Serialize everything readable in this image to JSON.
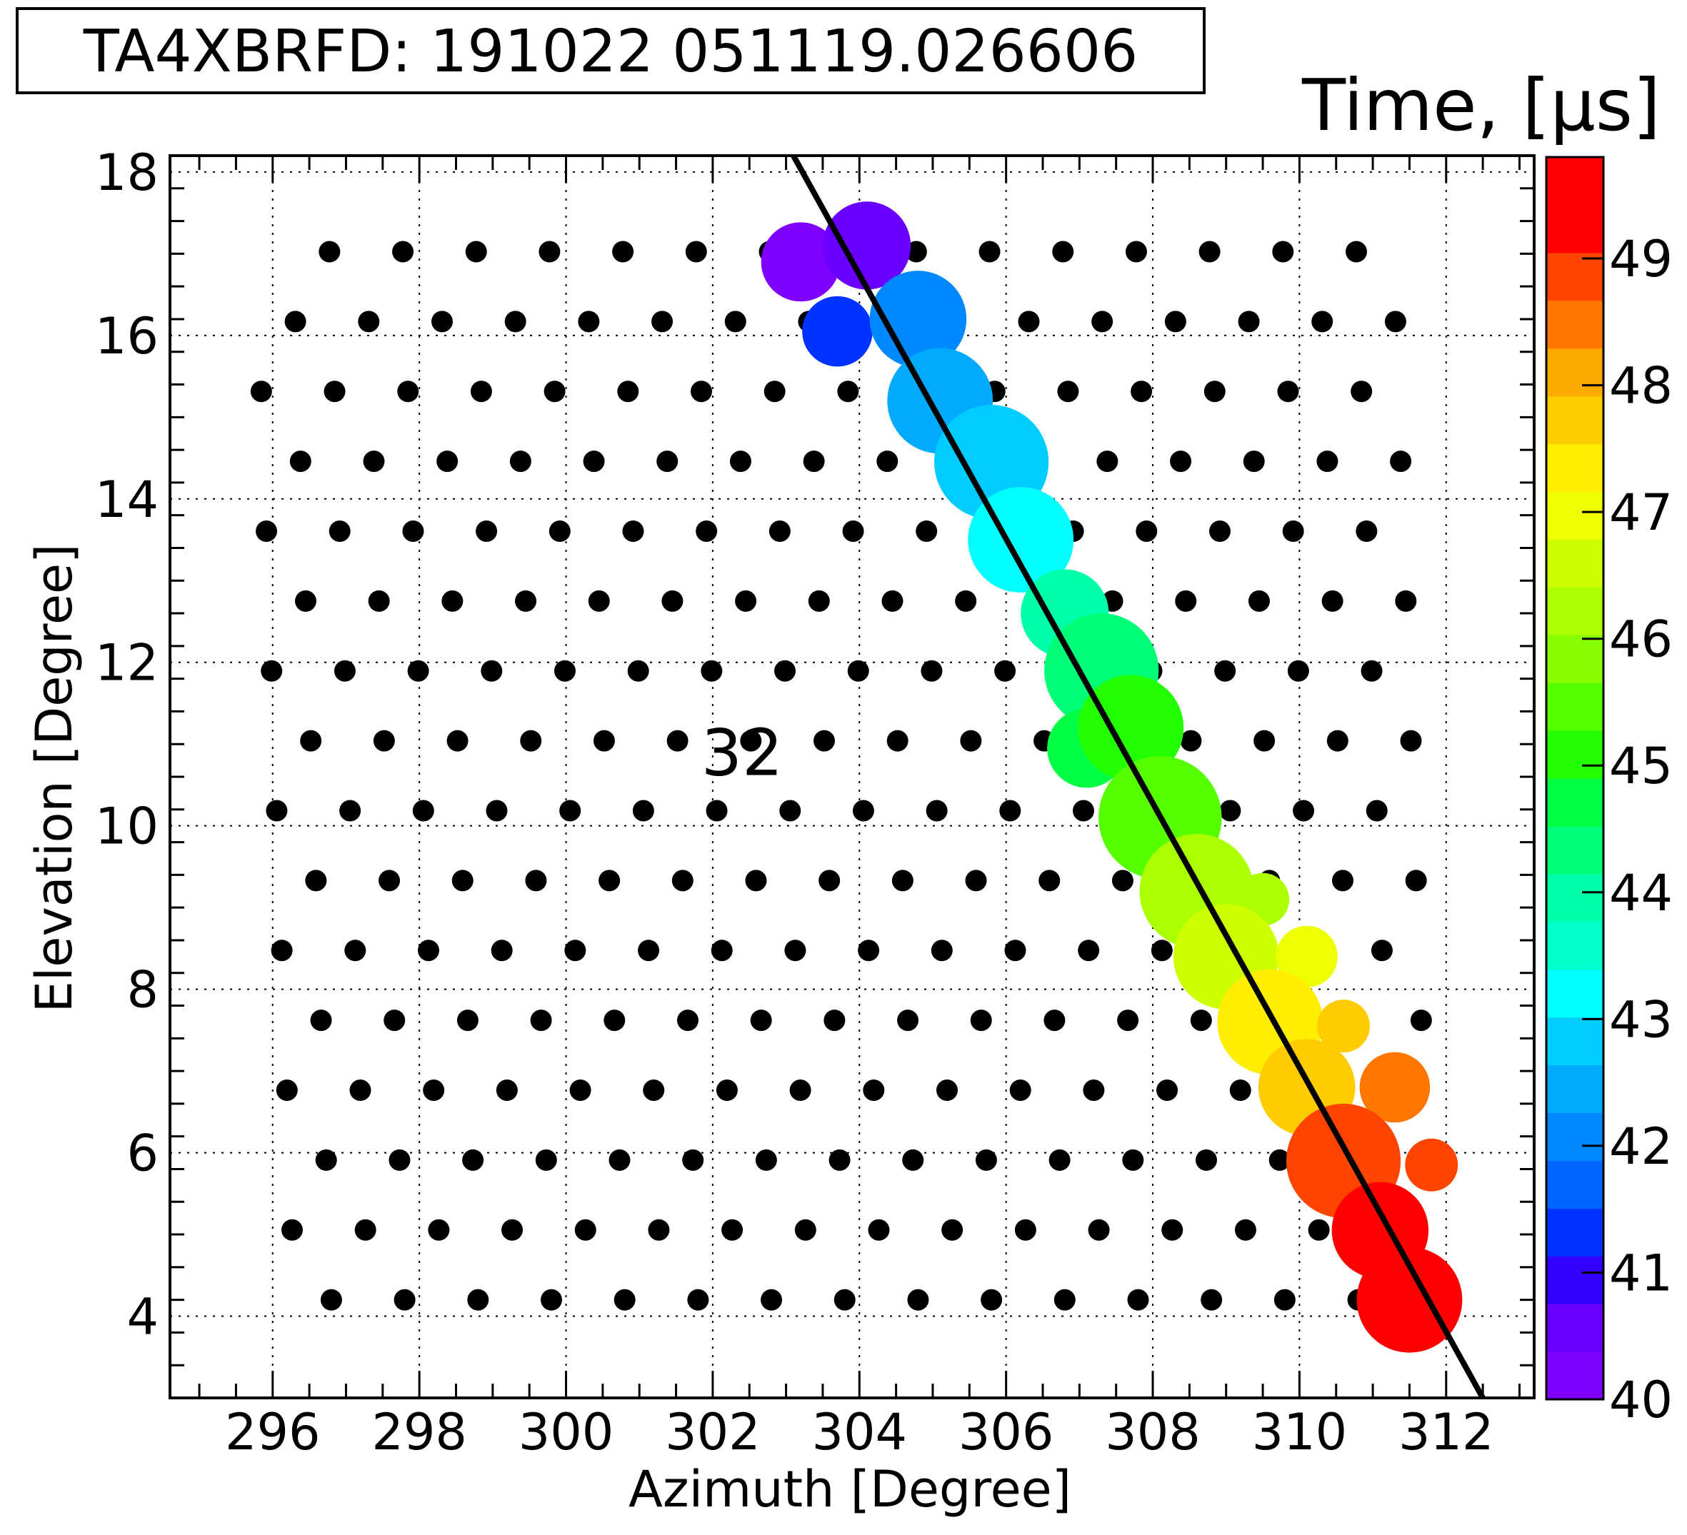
{
  "header": {
    "event_label": "TA4XBRFD: 191022 051119.026606"
  },
  "colorbar": {
    "title": "Time,  [μs]",
    "min": 40,
    "max": 49.8,
    "tick_labels": [
      "40",
      "41",
      "42",
      "43",
      "44",
      "45",
      "46",
      "47",
      "48",
      "49"
    ],
    "tick_values": [
      40,
      41,
      42,
      43,
      44,
      45,
      46,
      47,
      48,
      49
    ],
    "bands": [
      "#7f00ff",
      "#6a00ff",
      "#3300ff",
      "#0033ff",
      "#0066ff",
      "#0088ff",
      "#00aaff",
      "#00ccff",
      "#00ffff",
      "#00ffcc",
      "#00ffaa",
      "#00ff77",
      "#00ff44",
      "#22ff00",
      "#55ff00",
      "#88ff00",
      "#aaff00",
      "#ccff00",
      "#eeff00",
      "#ffee00",
      "#ffcc00",
      "#ffaa00",
      "#ff7700",
      "#ff4400",
      "#ff0000",
      "#ff0000"
    ]
  },
  "annotation": {
    "text": "32",
    "x": 302.4,
    "y": 10.9
  },
  "chart_data": {
    "type": "scatter",
    "xlabel": "Azimuth [Degree]",
    "ylabel": "Elevation [Degree]",
    "xlim": [
      294.6,
      313.2
    ],
    "ylim": [
      3,
      18.2
    ],
    "x_ticks": [
      296,
      298,
      300,
      302,
      304,
      306,
      308,
      310,
      312
    ],
    "x_tick_labels": [
      "296",
      "298",
      "300",
      "302",
      "304",
      "306",
      "308",
      "310",
      "312"
    ],
    "y_ticks": [
      4,
      6,
      8,
      10,
      12,
      14,
      16,
      18
    ],
    "y_tick_labels": [
      "4",
      "6",
      "8",
      "10",
      "12",
      "14",
      "16",
      "18"
    ],
    "grid": true,
    "fit_line": {
      "x": [
        303.1,
        312.5
      ],
      "y": [
        18.2,
        3.0
      ]
    },
    "hit_pixels": [
      {
        "az": 303.2,
        "el": 16.9,
        "size": 0.9,
        "time": 40.3
      },
      {
        "az": 304.1,
        "el": 17.1,
        "size": 1.0,
        "time": 40.7
      },
      {
        "az": 303.7,
        "el": 16.05,
        "size": 0.8,
        "time": 41.2
      },
      {
        "az": 304.8,
        "el": 16.2,
        "size": 1.1,
        "time": 41.9
      },
      {
        "az": 305.1,
        "el": 15.2,
        "size": 1.2,
        "time": 42.3
      },
      {
        "az": 305.8,
        "el": 14.45,
        "size": 1.3,
        "time": 42.8
      },
      {
        "az": 306.2,
        "el": 13.5,
        "size": 1.2,
        "time": 43.3
      },
      {
        "az": 306.8,
        "el": 12.6,
        "size": 1.0,
        "time": 43.8
      },
      {
        "az": 307.3,
        "el": 11.9,
        "size": 1.3,
        "time": 44.3
      },
      {
        "az": 307.1,
        "el": 10.95,
        "size": 0.9,
        "time": 44.6
      },
      {
        "az": 307.7,
        "el": 11.2,
        "size": 1.2,
        "time": 45.0
      },
      {
        "az": 308.1,
        "el": 10.1,
        "size": 1.4,
        "time": 45.5
      },
      {
        "az": 308.6,
        "el": 9.2,
        "size": 1.3,
        "time": 46.1
      },
      {
        "az": 309.5,
        "el": 9.1,
        "size": 0.6,
        "time": 46.4
      },
      {
        "az": 309.0,
        "el": 8.4,
        "size": 1.2,
        "time": 46.7
      },
      {
        "az": 310.1,
        "el": 8.4,
        "size": 0.7,
        "time": 46.9
      },
      {
        "az": 309.6,
        "el": 7.6,
        "size": 1.2,
        "time": 47.3
      },
      {
        "az": 310.6,
        "el": 7.55,
        "size": 0.6,
        "time": 47.6
      },
      {
        "az": 310.1,
        "el": 6.8,
        "size": 1.1,
        "time": 47.9
      },
      {
        "az": 311.3,
        "el": 6.8,
        "size": 0.8,
        "time": 48.3
      },
      {
        "az": 310.6,
        "el": 5.9,
        "size": 1.3,
        "time": 48.7
      },
      {
        "az": 311.8,
        "el": 5.85,
        "size": 0.6,
        "time": 48.9
      },
      {
        "az": 311.1,
        "el": 5.05,
        "size": 1.1,
        "time": 49.3
      },
      {
        "az": 311.5,
        "el": 4.2,
        "size": 1.2,
        "time": 49.8
      }
    ]
  }
}
